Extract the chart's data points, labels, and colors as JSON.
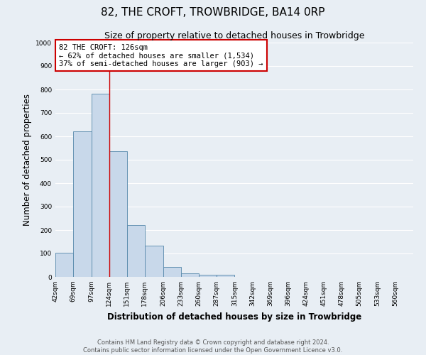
{
  "title": "82, THE CROFT, TROWBRIDGE, BA14 0RP",
  "subtitle": "Size of property relative to detached houses in Trowbridge",
  "xlabel": "Distribution of detached houses by size in Trowbridge",
  "ylabel": "Number of detached properties",
  "bin_edges": [
    42,
    69,
    97,
    124,
    151,
    178,
    206,
    233,
    260,
    287,
    315,
    342,
    369,
    396,
    424,
    451,
    478,
    505,
    533,
    560,
    587
  ],
  "bar_heights": [
    103,
    622,
    781,
    535,
    220,
    133,
    42,
    15,
    10,
    10,
    0,
    0,
    0,
    0,
    0,
    0,
    0,
    0,
    0,
    0
  ],
  "bar_color": "#c8d8ea",
  "bar_edge_color": "#5588aa",
  "vline_x": 124,
  "vline_color": "#cc0000",
  "ylim": [
    0,
    1000
  ],
  "yticks": [
    0,
    100,
    200,
    300,
    400,
    500,
    600,
    700,
    800,
    900,
    1000
  ],
  "annotation_title": "82 THE CROFT: 126sqm",
  "annotation_line1": "← 62% of detached houses are smaller (1,534)",
  "annotation_line2": "37% of semi-detached houses are larger (903) →",
  "annotation_box_color": "#ffffff",
  "annotation_box_edge": "#cc0000",
  "footer_line1": "Contains HM Land Registry data © Crown copyright and database right 2024.",
  "footer_line2": "Contains public sector information licensed under the Open Government Licence v3.0.",
  "fig_background": "#e8eef4",
  "plot_background": "#e8eef4",
  "grid_color": "#ffffff",
  "title_fontsize": 11,
  "subtitle_fontsize": 9,
  "tick_label_fontsize": 6.5,
  "axis_label_fontsize": 8.5,
  "footer_fontsize": 6
}
